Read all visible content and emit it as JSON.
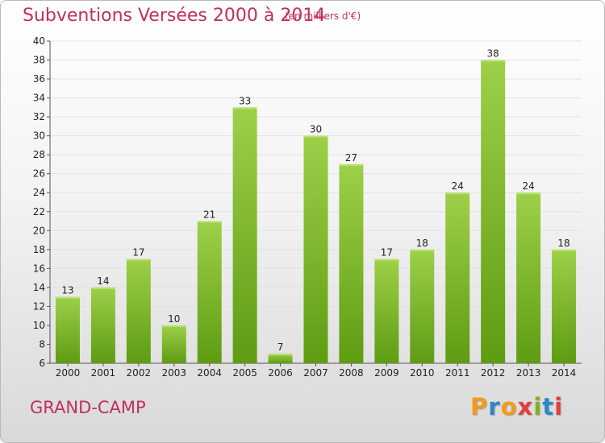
{
  "header": {
    "title": "Subventions Versées 2000 à 2014",
    "unit": "(en milliers d'€)"
  },
  "footer": {
    "commune": "GRAND-CAMP",
    "logo_text": "Proxiti"
  },
  "colors": {
    "title": "#c0305a",
    "bar_light": "#9ed049",
    "bar_dark": "#5e9c12",
    "logo": [
      "#f29a1b",
      "#2d87c9",
      "#f29a1b",
      "#e23c3c",
      "#7ab51d",
      "#2d87c9",
      "#e23c3c"
    ]
  },
  "chart_data": {
    "type": "bar",
    "title": "Subventions Versées 2000 à 2014",
    "xlabel": "",
    "ylabel": "",
    "categories": [
      "2000",
      "2001",
      "2002",
      "2003",
      "2004",
      "2005",
      "2006",
      "2007",
      "2008",
      "2009",
      "2010",
      "2011",
      "2012",
      "2013",
      "2014"
    ],
    "values": [
      13,
      14,
      17,
      10,
      21,
      33,
      7,
      30,
      27,
      17,
      18,
      24,
      38,
      24,
      18
    ],
    "ylim": [
      6,
      40
    ],
    "yticks": [
      6,
      8,
      10,
      12,
      14,
      16,
      18,
      20,
      22,
      24,
      26,
      28,
      30,
      32,
      34,
      36,
      38,
      40
    ],
    "grid": true,
    "legend": "none"
  }
}
